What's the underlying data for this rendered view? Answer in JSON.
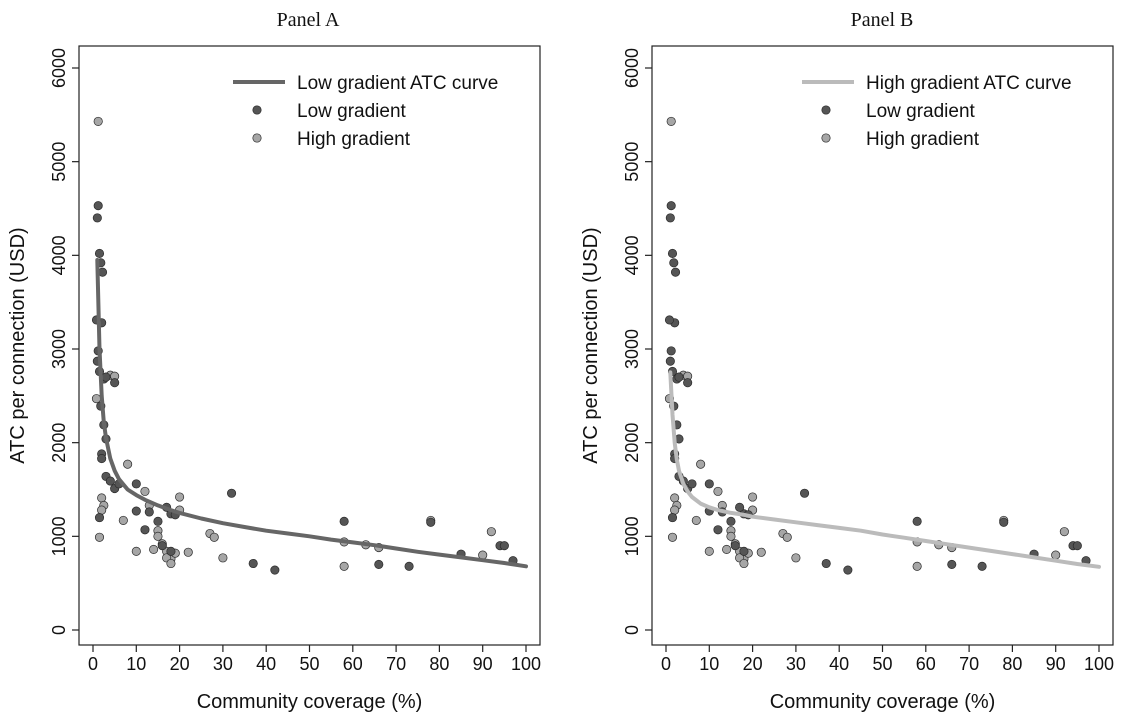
{
  "chart_data": [
    {
      "type": "scatter",
      "title": "Panel A",
      "xlabel": "Community coverage (%)",
      "ylabel": "ATC per connection (USD)",
      "xlim": [
        0,
        100
      ],
      "ylim": [
        0,
        6000
      ],
      "xticks": [
        0,
        10,
        20,
        30,
        40,
        50,
        60,
        70,
        80,
        90,
        100
      ],
      "yticks": [
        0,
        1000,
        2000,
        3000,
        4000,
        5000,
        6000
      ],
      "grid": false,
      "legend_position": "top-right",
      "curve": {
        "name": "Low gradient ATC curve",
        "color": "#666666",
        "x": [
          1,
          1.5,
          2,
          2.5,
          3,
          4,
          5,
          6,
          8,
          10,
          12,
          15,
          18,
          20,
          25,
          30,
          35,
          40,
          45,
          50,
          55,
          60,
          65,
          70,
          75,
          80,
          85,
          90,
          95,
          100
        ],
        "y": [
          3950,
          3000,
          2500,
          2220,
          2050,
          1830,
          1700,
          1610,
          1500,
          1440,
          1390,
          1330,
          1280,
          1250,
          1190,
          1140,
          1100,
          1060,
          1030,
          1000,
          965,
          935,
          905,
          870,
          835,
          805,
          775,
          745,
          715,
          680
        ]
      },
      "series": [
        {
          "name": "Low gradient",
          "color": "#555555",
          "x": [
            1,
            1.2,
            1.5,
            1.8,
            2,
            2.2,
            2.5,
            3,
            0.8,
            1,
            1.2,
            1.5,
            1.8,
            2,
            2.5,
            3,
            1.5,
            2,
            3,
            4,
            5,
            5,
            6,
            10,
            10,
            12,
            13,
            15,
            16,
            18,
            19,
            17,
            18,
            32,
            37,
            42,
            58,
            66,
            73,
            78,
            85,
            94,
            95,
            97
          ],
          "y": [
            4400,
            4530,
            4020,
            3920,
            3280,
            3820,
            2680,
            2700,
            3310,
            2870,
            2980,
            2760,
            2390,
            1880,
            2190,
            2040,
            1200,
            1830,
            1640,
            1590,
            1510,
            2640,
            1560,
            1560,
            1270,
            1070,
            1260,
            1160,
            900,
            1240,
            1230,
            1310,
            840,
            1460,
            710,
            640,
            1160,
            700,
            680,
            1150,
            810,
            900,
            900,
            740
          ]
        },
        {
          "name": "High gradient",
          "color": "#a6a6a6",
          "x": [
            1.2,
            0.8,
            2,
            2.5,
            4,
            5,
            8,
            12,
            13,
            15,
            16,
            17,
            18,
            20,
            20,
            22,
            27,
            28,
            30,
            58,
            58,
            63,
            66,
            78,
            90,
            92,
            1.5,
            2,
            7,
            10,
            14,
            15,
            17,
            18,
            19
          ],
          "y": [
            5430,
            2470,
            1410,
            1330,
            2720,
            2710,
            1770,
            1480,
            1330,
            1060,
            920,
            840,
            760,
            1420,
            1280,
            830,
            1030,
            990,
            770,
            940,
            680,
            910,
            880,
            1170,
            800,
            1050,
            990,
            1280,
            1170,
            840,
            860,
            1000,
            770,
            710,
            820
          ]
        }
      ]
    },
    {
      "type": "scatter",
      "title": "Panel B",
      "xlabel": "Community coverage (%)",
      "ylabel": "ATC per connection (USD)",
      "xlim": [
        0,
        100
      ],
      "ylim": [
        0,
        6000
      ],
      "xticks": [
        0,
        10,
        20,
        30,
        40,
        50,
        60,
        70,
        80,
        90,
        100
      ],
      "yticks": [
        0,
        1000,
        2000,
        3000,
        4000,
        5000,
        6000
      ],
      "grid": false,
      "legend_position": "top-right",
      "curve": {
        "name": "High gradient ATC curve",
        "color": "#bbbbbb",
        "x": [
          1,
          1.5,
          2,
          2.5,
          3,
          4,
          5,
          6,
          8,
          10,
          12,
          15,
          18,
          20,
          25,
          30,
          35,
          40,
          45,
          50,
          55,
          60,
          65,
          70,
          75,
          80,
          85,
          90,
          95,
          100
        ],
        "y": [
          2750,
          2300,
          2000,
          1820,
          1700,
          1560,
          1480,
          1420,
          1350,
          1310,
          1280,
          1250,
          1230,
          1210,
          1180,
          1150,
          1120,
          1090,
          1060,
          1020,
          985,
          950,
          915,
          880,
          845,
          810,
          775,
          740,
          705,
          675
        ]
      },
      "series": [
        {
          "name": "Low gradient",
          "color": "#555555",
          "x": [
            1,
            1.2,
            1.5,
            1.8,
            2,
            2.2,
            2.5,
            3,
            0.8,
            1,
            1.2,
            1.5,
            1.8,
            2,
            2.5,
            3,
            1.5,
            2,
            3,
            4,
            5,
            5,
            6,
            10,
            10,
            12,
            13,
            15,
            16,
            18,
            19,
            17,
            18,
            32,
            37,
            42,
            58,
            66,
            73,
            78,
            85,
            94,
            95,
            97
          ],
          "y": [
            4400,
            4530,
            4020,
            3920,
            3280,
            3820,
            2680,
            2700,
            3310,
            2870,
            2980,
            2760,
            2390,
            1880,
            2190,
            2040,
            1200,
            1830,
            1640,
            1590,
            1510,
            2640,
            1560,
            1560,
            1270,
            1070,
            1260,
            1160,
            900,
            1240,
            1230,
            1310,
            840,
            1460,
            710,
            640,
            1160,
            700,
            680,
            1150,
            810,
            900,
            900,
            740
          ]
        },
        {
          "name": "High gradient",
          "color": "#a6a6a6",
          "x": [
            1.2,
            0.8,
            2,
            2.5,
            4,
            5,
            8,
            12,
            13,
            15,
            16,
            17,
            18,
            20,
            20,
            22,
            27,
            28,
            30,
            58,
            58,
            63,
            66,
            78,
            90,
            92,
            1.5,
            2,
            7,
            10,
            14,
            15,
            17,
            18,
            19
          ],
          "y": [
            5430,
            2470,
            1410,
            1330,
            2720,
            2710,
            1770,
            1480,
            1330,
            1060,
            920,
            840,
            760,
            1420,
            1280,
            830,
            1030,
            990,
            770,
            940,
            680,
            910,
            880,
            1170,
            800,
            1050,
            990,
            1280,
            1170,
            840,
            860,
            1000,
            770,
            710,
            820
          ]
        }
      ]
    }
  ]
}
